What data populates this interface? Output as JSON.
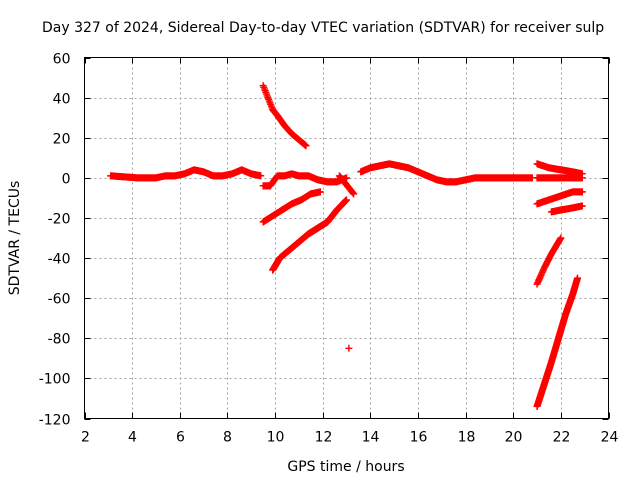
{
  "chart_data": {
    "type": "scatter",
    "title": "Day 327 of 2024, Sidereal Day-to-day VTEC variation (SDTVAR) for receiver sulp",
    "xlabel": "GPS time / hours",
    "ylabel": "SDTVAR / TECUs",
    "xlim": [
      2,
      24
    ],
    "ylim": [
      -120,
      60
    ],
    "xticks": [
      2,
      4,
      6,
      8,
      10,
      12,
      14,
      16,
      18,
      20,
      22,
      24
    ],
    "yticks": [
      -120,
      -100,
      -80,
      -60,
      -40,
      -20,
      0,
      20,
      40,
      60
    ],
    "xtick_labels": [
      "2",
      "4",
      "6",
      "8",
      "10",
      "12",
      "14",
      "16",
      "18",
      "20",
      "22",
      "24"
    ],
    "ytick_labels": [
      "-120",
      "-100",
      "-80",
      "-60",
      "-40",
      "-20",
      "0",
      "20",
      "40",
      "60"
    ],
    "grid": true,
    "marker": "+",
    "color": "#ff0000",
    "series": [
      {
        "name": "arc-main-1",
        "x": [
          3.1,
          4.2,
          4.6,
          5.0,
          5.4,
          5.8,
          6.2,
          6.6,
          7.0,
          7.4,
          7.8,
          8.2,
          8.6,
          9.0,
          9.4
        ],
        "y": [
          1,
          0,
          0,
          0,
          1,
          1,
          2,
          4,
          3,
          1,
          1,
          2,
          4,
          2,
          1
        ]
      },
      {
        "name": "arc-main-2",
        "x": [
          9.5,
          9.8,
          10.1,
          10.4,
          10.7,
          11.0,
          11.4,
          11.8,
          12.2,
          12.6,
          13.0
        ],
        "y": [
          -4,
          -4,
          1,
          1,
          2,
          1,
          1,
          -1,
          -2,
          -2,
          0
        ]
      },
      {
        "name": "arc-main-3",
        "x": [
          13.6,
          14.0,
          14.4,
          14.8,
          15.2,
          15.6,
          16.0,
          16.4,
          16.8,
          17.2,
          17.6,
          18.0,
          18.4,
          18.8,
          19.2,
          19.6,
          20.0,
          20.4,
          20.8
        ],
        "y": [
          3,
          5,
          6,
          7,
          6,
          5,
          3,
          1,
          -1,
          -2,
          -2,
          -1,
          0,
          0,
          0,
          0,
          0,
          0,
          0
        ]
      },
      {
        "name": "arc-high",
        "x": [
          9.5,
          9.7,
          9.9,
          10.1,
          10.4,
          10.7,
          11.0,
          11.3
        ],
        "y": [
          46,
          40,
          34,
          31,
          26,
          22,
          19,
          16
        ]
      },
      {
        "name": "arc-mid",
        "x": [
          9.5,
          9.9,
          10.3,
          10.7,
          11.1,
          11.5,
          11.9
        ],
        "y": [
          -22,
          -19,
          -16,
          -13,
          -11,
          -8,
          -7
        ]
      },
      {
        "name": "arc-low",
        "x": [
          9.9,
          10.2,
          10.6,
          11.0,
          11.4,
          11.8,
          12.2,
          12.6,
          13.0
        ],
        "y": [
          -46,
          -40,
          -36,
          -32,
          -28,
          -25,
          -22,
          -16,
          -11
        ]
      },
      {
        "name": "arc-short",
        "x": [
          12.7,
          13.3
        ],
        "y": [
          1,
          -8
        ]
      },
      {
        "name": "outlier",
        "x": [
          13.1
        ],
        "y": [
          -85
        ]
      },
      {
        "name": "arc-late-1",
        "x": [
          21.0,
          21.5,
          22.0,
          22.5,
          22.9
        ],
        "y": [
          7,
          5,
          4,
          3,
          2
        ]
      },
      {
        "name": "arc-late-2",
        "x": [
          21.0,
          21.5,
          22.0,
          22.5,
          22.9
        ],
        "y": [
          0,
          0,
          0,
          0,
          0
        ]
      },
      {
        "name": "arc-late-3",
        "x": [
          21.0,
          21.5,
          22.0,
          22.5,
          22.9
        ],
        "y": [
          -13,
          -11,
          -9,
          -7,
          -7
        ]
      },
      {
        "name": "arc-late-4",
        "x": [
          21.6,
          22.0,
          22.5,
          22.9
        ],
        "y": [
          -17,
          -16,
          -15,
          -14
        ]
      },
      {
        "name": "arc-late-5",
        "x": [
          21.0,
          21.3,
          21.6,
          22.0
        ],
        "y": [
          -53,
          -45,
          -38,
          -30
        ]
      },
      {
        "name": "arc-late-6",
        "x": [
          21.0,
          21.3,
          21.6,
          21.9,
          22.2,
          22.5,
          22.7
        ],
        "y": [
          -114,
          -103,
          -92,
          -80,
          -68,
          -58,
          -50
        ]
      }
    ]
  }
}
